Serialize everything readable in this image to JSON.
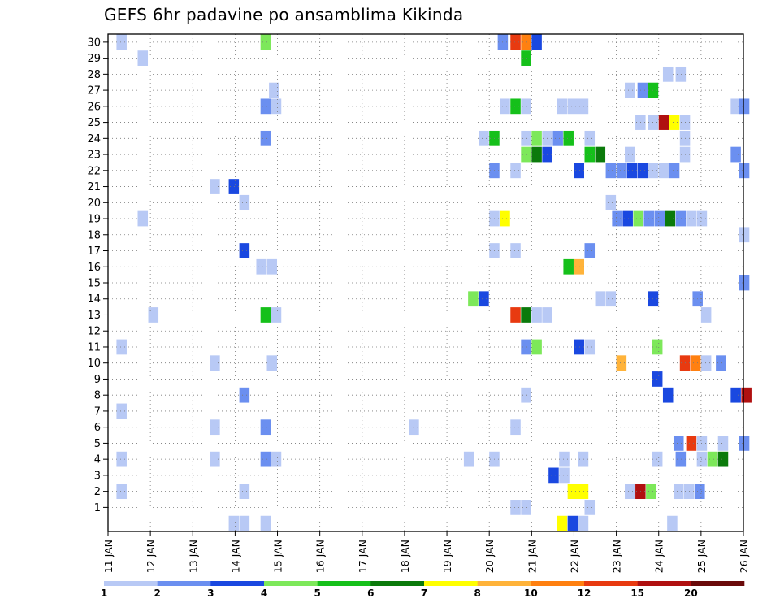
{
  "chart_data": {
    "type": "heatmap",
    "title": "GEFS 6hr padavine po ansamblima Kikinda",
    "xlabel": "",
    "ylabel": "",
    "x_tick_labels": [
      "11 JAN",
      "12 JAN",
      "13 JAN",
      "14 JAN",
      "15 JAN",
      "16 JAN",
      "17 JAN",
      "18 JAN",
      "19 JAN",
      "20 JAN",
      "21 JAN",
      "22 JAN",
      "23 JAN",
      "24 JAN",
      "25 JAN",
      "26 JAN"
    ],
    "y_tick_labels": [
      "1",
      "2",
      "3",
      "4",
      "5",
      "6",
      "7",
      "8",
      "9",
      "10",
      "11",
      "12",
      "13",
      "14",
      "15",
      "16",
      "17",
      "18",
      "19",
      "20",
      "21",
      "22",
      "23",
      "24",
      "25",
      "26",
      "27",
      "28",
      "29",
      "30"
    ],
    "grid": true,
    "legend_position": "bottom",
    "legend": {
      "colors": [
        "#b8c9f5",
        "#6b8ff0",
        "#1a48e0",
        "#7de85a",
        "#15c01a",
        "#0b7a0b",
        "#ffff00",
        "#ffb33a",
        "#ff8010",
        "#e83a10",
        "#b01010",
        "#6a0a0a"
      ],
      "labels": [
        "1",
        "2",
        "3",
        "4",
        "5",
        "6",
        "7",
        "8",
        "10",
        "12",
        "15",
        "20"
      ]
    },
    "cells": [
      {
        "d": 0.2,
        "m": 30,
        "v": 1
      },
      {
        "d": 3.6,
        "m": 30,
        "v": 4
      },
      {
        "d": 9.2,
        "m": 30,
        "v": 2
      },
      {
        "d": 9.5,
        "m": 30,
        "v": 12
      },
      {
        "d": 9.75,
        "m": 30,
        "v": 10
      },
      {
        "d": 10.0,
        "m": 30,
        "v": 3
      },
      {
        "d": 0.7,
        "m": 29,
        "v": 1
      },
      {
        "d": 9.75,
        "m": 29,
        "v": 5
      },
      {
        "d": 13.1,
        "m": 28,
        "v": 1
      },
      {
        "d": 13.4,
        "m": 28,
        "v": 1
      },
      {
        "d": 3.8,
        "m": 27,
        "v": 1
      },
      {
        "d": 12.2,
        "m": 27,
        "v": 1
      },
      {
        "d": 12.5,
        "m": 27,
        "v": 2
      },
      {
        "d": 12.75,
        "m": 27,
        "v": 5
      },
      {
        "d": 3.6,
        "m": 26,
        "v": 2
      },
      {
        "d": 3.85,
        "m": 26,
        "v": 1
      },
      {
        "d": 9.25,
        "m": 26,
        "v": 1
      },
      {
        "d": 9.5,
        "m": 26,
        "v": 5
      },
      {
        "d": 9.75,
        "m": 26,
        "v": 1
      },
      {
        "d": 10.6,
        "m": 26,
        "v": 1
      },
      {
        "d": 10.85,
        "m": 26,
        "v": 1
      },
      {
        "d": 11.1,
        "m": 26,
        "v": 1
      },
      {
        "d": 14.7,
        "m": 26,
        "v": 1
      },
      {
        "d": 14.9,
        "m": 26,
        "v": 2
      },
      {
        "d": 12.45,
        "m": 25,
        "v": 1
      },
      {
        "d": 12.75,
        "m": 25,
        "v": 1
      },
      {
        "d": 13.0,
        "m": 25,
        "v": 15
      },
      {
        "d": 13.25,
        "m": 25,
        "v": 7
      },
      {
        "d": 13.5,
        "m": 25,
        "v": 1
      },
      {
        "d": 8.75,
        "m": 24,
        "v": 1
      },
      {
        "d": 9.0,
        "m": 24,
        "v": 5
      },
      {
        "d": 9.75,
        "m": 24,
        "v": 1
      },
      {
        "d": 10.0,
        "m": 24,
        "v": 4
      },
      {
        "d": 10.25,
        "m": 24,
        "v": 1
      },
      {
        "d": 10.5,
        "m": 24,
        "v": 2
      },
      {
        "d": 10.75,
        "m": 24,
        "v": 5
      },
      {
        "d": 11.25,
        "m": 24,
        "v": 1
      },
      {
        "d": 13.5,
        "m": 24,
        "v": 1
      },
      {
        "d": 3.6,
        "m": 24,
        "v": 2
      },
      {
        "d": 9.75,
        "m": 23,
        "v": 4
      },
      {
        "d": 10.0,
        "m": 23,
        "v": 6
      },
      {
        "d": 10.25,
        "m": 23,
        "v": 3
      },
      {
        "d": 11.25,
        "m": 23,
        "v": 5
      },
      {
        "d": 11.5,
        "m": 23,
        "v": 6
      },
      {
        "d": 12.2,
        "m": 23,
        "v": 1
      },
      {
        "d": 13.5,
        "m": 23,
        "v": 1
      },
      {
        "d": 14.7,
        "m": 23,
        "v": 2
      },
      {
        "d": 9.0,
        "m": 22,
        "v": 2
      },
      {
        "d": 9.5,
        "m": 22,
        "v": 1
      },
      {
        "d": 11.0,
        "m": 22,
        "v": 3
      },
      {
        "d": 11.75,
        "m": 22,
        "v": 2
      },
      {
        "d": 12.0,
        "m": 22,
        "v": 2
      },
      {
        "d": 12.25,
        "m": 22,
        "v": 3
      },
      {
        "d": 12.5,
        "m": 22,
        "v": 3
      },
      {
        "d": 12.75,
        "m": 22,
        "v": 1
      },
      {
        "d": 13.0,
        "m": 22,
        "v": 1
      },
      {
        "d": 13.25,
        "m": 22,
        "v": 2
      },
      {
        "d": 14.9,
        "m": 22,
        "v": 2
      },
      {
        "d": 2.4,
        "m": 21,
        "v": 1
      },
      {
        "d": 2.85,
        "m": 21,
        "v": 3
      },
      {
        "d": 3.1,
        "m": 20,
        "v": 1
      },
      {
        "d": 11.75,
        "m": 20,
        "v": 1
      },
      {
        "d": 0.7,
        "m": 19,
        "v": 1
      },
      {
        "d": 9.0,
        "m": 19,
        "v": 1
      },
      {
        "d": 9.25,
        "m": 19,
        "v": 7
      },
      {
        "d": 11.9,
        "m": 19,
        "v": 2
      },
      {
        "d": 12.15,
        "m": 19,
        "v": 3
      },
      {
        "d": 12.4,
        "m": 19,
        "v": 4
      },
      {
        "d": 12.65,
        "m": 19,
        "v": 2
      },
      {
        "d": 12.9,
        "m": 19,
        "v": 2
      },
      {
        "d": 13.15,
        "m": 19,
        "v": 6
      },
      {
        "d": 13.4,
        "m": 19,
        "v": 2
      },
      {
        "d": 13.65,
        "m": 19,
        "v": 1
      },
      {
        "d": 13.9,
        "m": 19,
        "v": 1
      },
      {
        "d": 14.9,
        "m": 18,
        "v": 1
      },
      {
        "d": 9.0,
        "m": 17,
        "v": 1
      },
      {
        "d": 9.5,
        "m": 17,
        "v": 1
      },
      {
        "d": 3.1,
        "m": 17,
        "v": 3
      },
      {
        "d": 11.25,
        "m": 17,
        "v": 2
      },
      {
        "d": 3.5,
        "m": 16,
        "v": 1
      },
      {
        "d": 3.75,
        "m": 16,
        "v": 1
      },
      {
        "d": 10.75,
        "m": 16,
        "v": 5
      },
      {
        "d": 11.0,
        "m": 16,
        "v": 8
      },
      {
        "d": 14.9,
        "m": 15,
        "v": 2
      },
      {
        "d": 8.5,
        "m": 14,
        "v": 4
      },
      {
        "d": 8.75,
        "m": 14,
        "v": 3
      },
      {
        "d": 11.5,
        "m": 14,
        "v": 1
      },
      {
        "d": 11.75,
        "m": 14,
        "v": 1
      },
      {
        "d": 12.75,
        "m": 14,
        "v": 3
      },
      {
        "d": 13.8,
        "m": 14,
        "v": 2
      },
      {
        "d": 0.95,
        "m": 13,
        "v": 1
      },
      {
        "d": 3.6,
        "m": 13,
        "v": 5
      },
      {
        "d": 3.85,
        "m": 13,
        "v": 1
      },
      {
        "d": 9.5,
        "m": 13,
        "v": 12
      },
      {
        "d": 9.75,
        "m": 13,
        "v": 6
      },
      {
        "d": 10.0,
        "m": 13,
        "v": 1
      },
      {
        "d": 10.25,
        "m": 13,
        "v": 1
      },
      {
        "d": 14.0,
        "m": 13,
        "v": 1
      },
      {
        "d": 0.2,
        "m": 11,
        "v": 1
      },
      {
        "d": 9.75,
        "m": 11,
        "v": 2
      },
      {
        "d": 10.0,
        "m": 11,
        "v": 4
      },
      {
        "d": 11.0,
        "m": 11,
        "v": 3
      },
      {
        "d": 11.25,
        "m": 11,
        "v": 1
      },
      {
        "d": 12.85,
        "m": 11,
        "v": 4
      },
      {
        "d": 2.4,
        "m": 10,
        "v": 1
      },
      {
        "d": 3.75,
        "m": 10,
        "v": 1
      },
      {
        "d": 12.0,
        "m": 10,
        "v": 8
      },
      {
        "d": 13.5,
        "m": 10,
        "v": 12
      },
      {
        "d": 13.75,
        "m": 10,
        "v": 10
      },
      {
        "d": 14.0,
        "m": 10,
        "v": 1
      },
      {
        "d": 14.35,
        "m": 10,
        "v": 2
      },
      {
        "d": 12.85,
        "m": 9,
        "v": 3
      },
      {
        "d": 3.1,
        "m": 8,
        "v": 2
      },
      {
        "d": 9.75,
        "m": 8,
        "v": 1
      },
      {
        "d": 13.1,
        "m": 8,
        "v": 3
      },
      {
        "d": 14.7,
        "m": 8,
        "v": 3
      },
      {
        "d": 14.95,
        "m": 8,
        "v": 15
      },
      {
        "d": 0.2,
        "m": 7,
        "v": 1
      },
      {
        "d": 2.4,
        "m": 6,
        "v": 1
      },
      {
        "d": 3.6,
        "m": 6,
        "v": 2
      },
      {
        "d": 7.1,
        "m": 6,
        "v": 1
      },
      {
        "d": 9.5,
        "m": 6,
        "v": 1
      },
      {
        "d": 13.65,
        "m": 5,
        "v": 12
      },
      {
        "d": 13.35,
        "m": 5,
        "v": 2
      },
      {
        "d": 13.9,
        "m": 5,
        "v": 1
      },
      {
        "d": 14.4,
        "m": 5,
        "v": 1
      },
      {
        "d": 14.9,
        "m": 5,
        "v": 2
      },
      {
        "d": 0.2,
        "m": 4,
        "v": 1
      },
      {
        "d": 2.4,
        "m": 4,
        "v": 1
      },
      {
        "d": 3.6,
        "m": 4,
        "v": 2
      },
      {
        "d": 3.85,
        "m": 4,
        "v": 1
      },
      {
        "d": 8.4,
        "m": 4,
        "v": 1
      },
      {
        "d": 9.0,
        "m": 4,
        "v": 1
      },
      {
        "d": 10.65,
        "m": 4,
        "v": 1
      },
      {
        "d": 11.1,
        "m": 4,
        "v": 1
      },
      {
        "d": 12.85,
        "m": 4,
        "v": 1
      },
      {
        "d": 13.4,
        "m": 4,
        "v": 2
      },
      {
        "d": 13.9,
        "m": 4,
        "v": 1
      },
      {
        "d": 14.15,
        "m": 4,
        "v": 4
      },
      {
        "d": 14.4,
        "m": 4,
        "v": 6
      },
      {
        "d": 10.4,
        "m": 3,
        "v": 3
      },
      {
        "d": 10.65,
        "m": 3,
        "v": 1
      },
      {
        "d": 0.2,
        "m": 2,
        "v": 1
      },
      {
        "d": 3.1,
        "m": 2,
        "v": 1
      },
      {
        "d": 10.85,
        "m": 2,
        "v": 7
      },
      {
        "d": 11.1,
        "m": 2,
        "v": 7
      },
      {
        "d": 12.2,
        "m": 2,
        "v": 1
      },
      {
        "d": 12.45,
        "m": 2,
        "v": 15
      },
      {
        "d": 12.7,
        "m": 2,
        "v": 4
      },
      {
        "d": 13.35,
        "m": 2,
        "v": 1
      },
      {
        "d": 13.6,
        "m": 2,
        "v": 1
      },
      {
        "d": 13.85,
        "m": 2,
        "v": 2
      },
      {
        "d": 9.5,
        "m": 1,
        "v": 1
      },
      {
        "d": 9.75,
        "m": 1,
        "v": 1
      },
      {
        "d": 11.25,
        "m": 1,
        "v": 1
      },
      {
        "d": 2.85,
        "m": 0,
        "v": 1
      },
      {
        "d": 3.1,
        "m": 0,
        "v": 1
      },
      {
        "d": 3.6,
        "m": 0,
        "v": 1
      },
      {
        "d": 10.6,
        "m": 0,
        "v": 7
      },
      {
        "d": 10.85,
        "m": 0,
        "v": 3
      },
      {
        "d": 11.1,
        "m": 0,
        "v": 1
      },
      {
        "d": 13.2,
        "m": 0,
        "v": 1
      }
    ]
  }
}
